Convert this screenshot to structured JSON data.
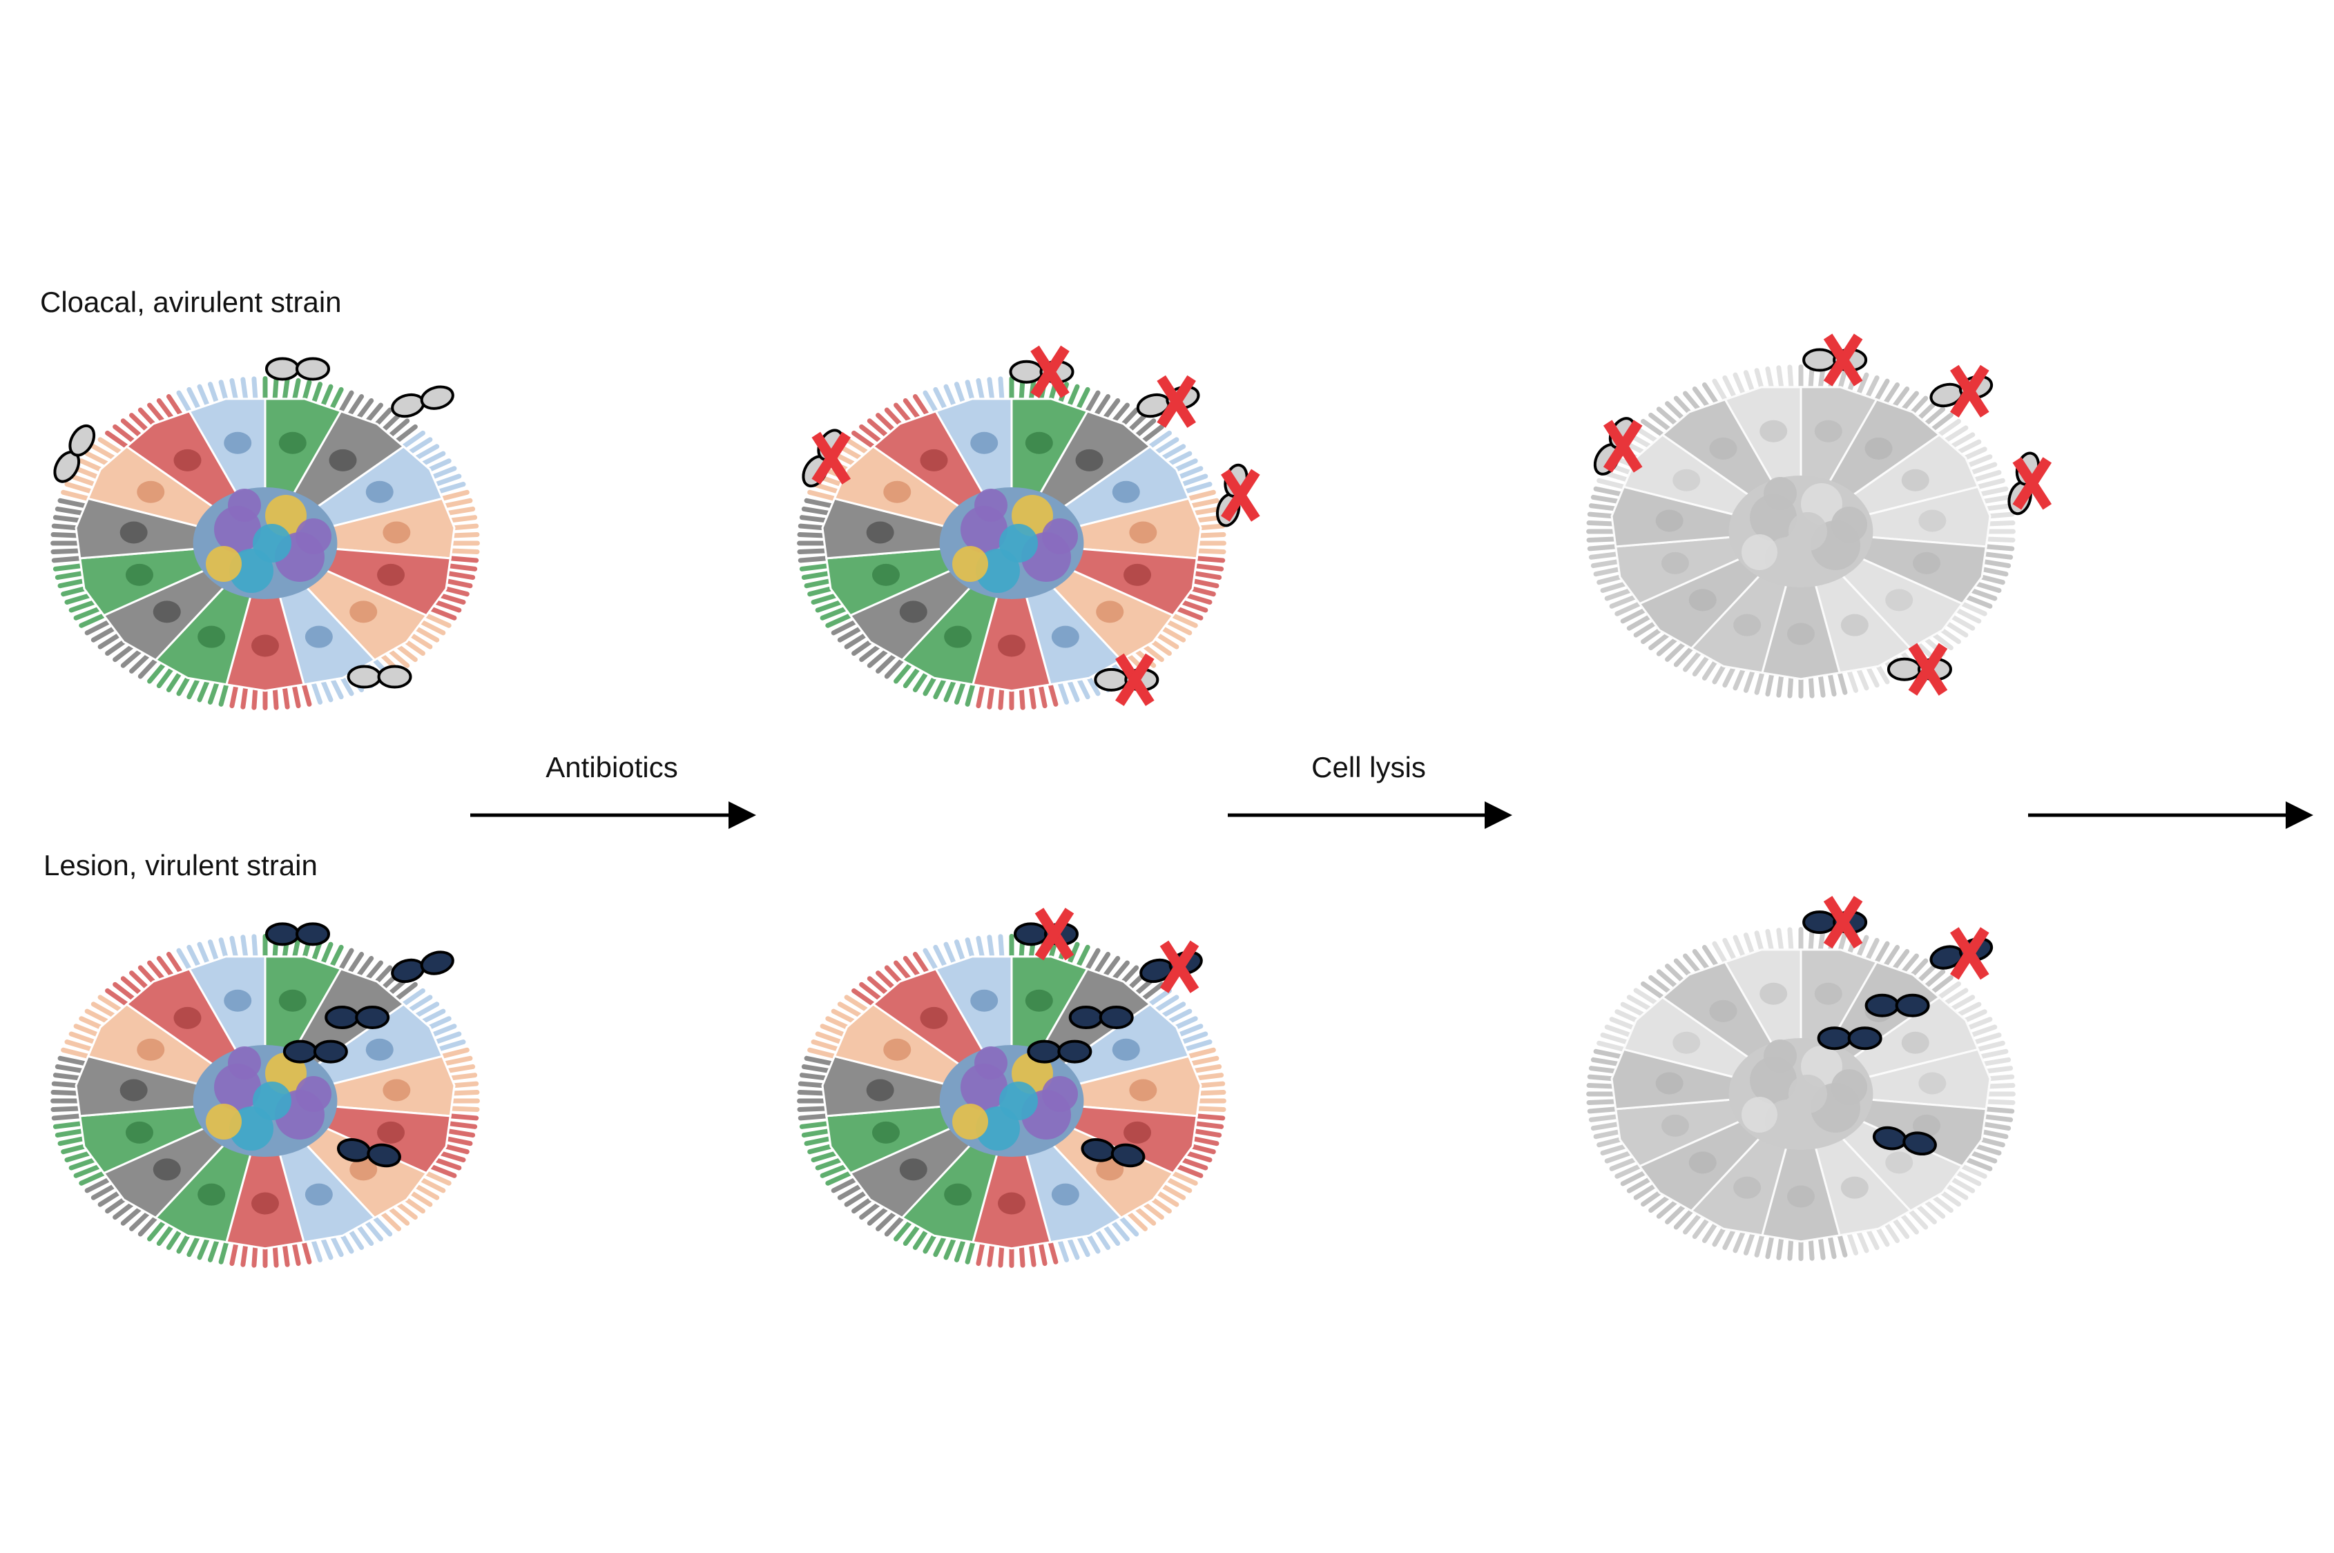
{
  "rows": {
    "top": {
      "label": "Cloacal, avirulent strain"
    },
    "bottom": {
      "label": "Lesion, virulent strain"
    }
  },
  "steps": {
    "first": {
      "label": "Antibiotics"
    },
    "second": {
      "label": "Cell lysis"
    }
  }
}
